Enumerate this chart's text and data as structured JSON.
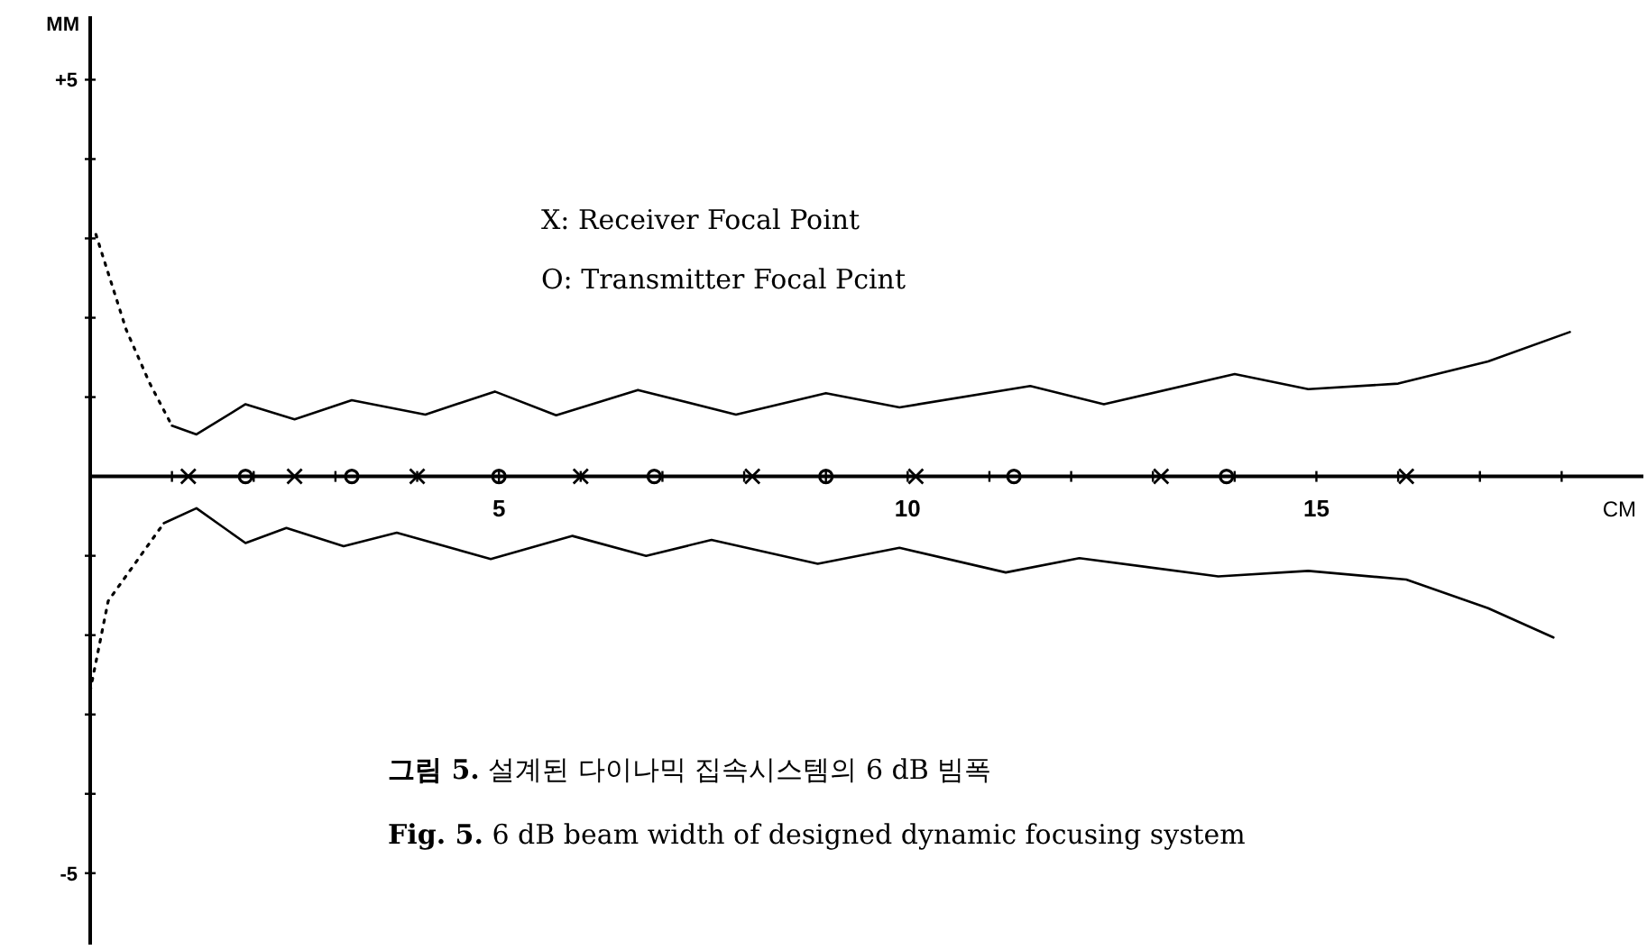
{
  "chart_data": {
    "type": "line",
    "xlabel": "CM",
    "ylabel": "MM",
    "xlim": [
      0,
      19
    ],
    "ylim": [
      -5.9,
      5.8
    ],
    "xticks": [
      {
        "value": 0,
        "label": null
      },
      {
        "value": 1,
        "label": null
      },
      {
        "value": 2,
        "label": null
      },
      {
        "value": 3,
        "label": null
      },
      {
        "value": 4,
        "label": null
      },
      5,
      {
        "value": 6,
        "label": null
      },
      {
        "value": 7,
        "label": null
      },
      {
        "value": 8,
        "label": null
      },
      {
        "value": 9,
        "label": null
      },
      10,
      {
        "value": 11,
        "label": null
      },
      {
        "value": 12,
        "label": null
      },
      {
        "value": 13,
        "label": null
      },
      {
        "value": 14,
        "label": null
      },
      15,
      {
        "value": 16,
        "label": null
      },
      {
        "value": 17,
        "label": null
      },
      {
        "value": 18,
        "label": null
      }
    ],
    "yticks": [
      {
        "value": -5,
        "label": "-5"
      },
      {
        "value": -4,
        "label": null
      },
      {
        "value": -3,
        "label": null
      },
      {
        "value": -2,
        "label": null
      },
      {
        "value": -1,
        "label": null
      },
      {
        "value": 1,
        "label": null
      },
      {
        "value": 2,
        "label": null
      },
      {
        "value": 3,
        "label": null
      },
      {
        "value": 4,
        "label": null
      },
      {
        "value": 5,
        "label": "+5"
      }
    ],
    "grid": false,
    "marker": "none",
    "line_style": "solid",
    "series": [
      {
        "color": "#000000",
        "line_style": "dotted",
        "x": [
          0.07,
          0.44,
          0.73,
          1.0
        ],
        "values": [
          3.05,
          1.85,
          1.17,
          0.64
        ]
      },
      {
        "color": "#000000",
        "x": [
          1.0,
          1.3,
          1.9,
          2.5,
          3.2,
          4.1,
          4.95,
          5.7,
          6.7,
          7.9,
          9.0,
          9.9,
          11.5,
          12.4,
          14.0,
          14.9,
          16.0,
          17.1,
          18.1
        ],
        "values": [
          0.64,
          0.53,
          0.91,
          0.72,
          0.96,
          0.78,
          1.07,
          0.77,
          1.09,
          0.78,
          1.05,
          0.87,
          1.14,
          0.91,
          1.29,
          1.1,
          1.17,
          1.45,
          1.82
        ]
      },
      {
        "color": "#000000",
        "line_style": "dotted",
        "x": [
          0.0,
          0.22,
          0.9
        ],
        "values": [
          -2.7,
          -1.57,
          -0.59
        ]
      },
      {
        "color": "#000000",
        "x": [
          0.9,
          1.3,
          1.9,
          2.4,
          3.1,
          3.75,
          4.9,
          5.9,
          6.8,
          7.6,
          8.9,
          9.9,
          11.2,
          12.1,
          13.8,
          14.9,
          16.1,
          17.1,
          17.9
        ],
        "values": [
          -0.59,
          -0.4,
          -0.84,
          -0.65,
          -0.88,
          -0.71,
          -1.04,
          -0.75,
          -1.0,
          -0.8,
          -1.1,
          -0.9,
          -1.21,
          -1.03,
          -1.26,
          -1.19,
          -1.3,
          -1.66,
          -2.03
        ]
      },
      {
        "type": "scatter",
        "color": "#000000",
        "marker": "cross",
        "x": [
          1.2,
          2.5,
          4.0,
          6.0,
          8.1,
          10.1,
          13.1,
          16.1
        ],
        "values": [
          0,
          0,
          0,
          0,
          0,
          0,
          0,
          0
        ]
      },
      {
        "type": "scatter",
        "color": "#000000",
        "marker": "circle",
        "x": [
          1.9,
          3.2,
          5.0,
          6.9,
          9.0,
          11.3,
          13.9
        ],
        "values": [
          0,
          0,
          0,
          0,
          0,
          0,
          0
        ]
      }
    ],
    "annotations": [
      "X: Receiver Focal Point",
      "O: Transmitter Focal Pcint",
      "**그림 5.** 설계된 다이나믹 집속시스템의 6 dB 빔폭",
      "**Fig. 5.** 6 dB beam width of designed dynamic focusing system"
    ]
  }
}
